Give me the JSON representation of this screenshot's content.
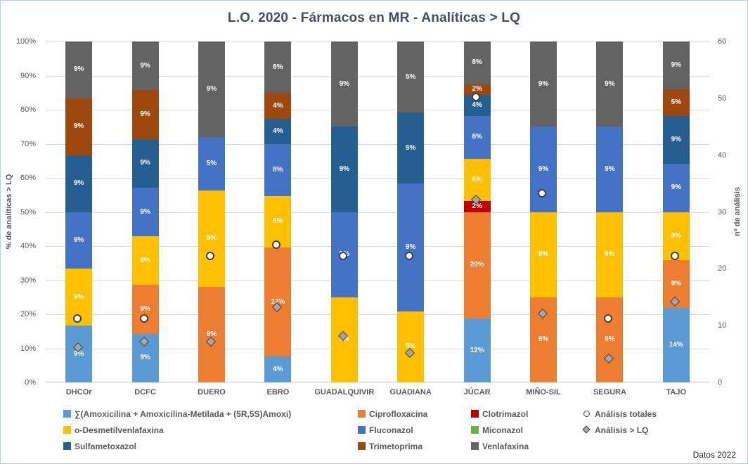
{
  "title": "L.O. 2020 - Fármacos en MR - Analíticas > LQ",
  "footer": "Datos 2022",
  "left_axis": {
    "title": "% de analíticas > LQ",
    "ticks": [
      "0%",
      "10%",
      "20%",
      "30%",
      "40%",
      "50%",
      "60%",
      "70%",
      "80%",
      "90%",
      "100%"
    ],
    "range": [
      0,
      100
    ]
  },
  "right_axis": {
    "title": "nº de análisis",
    "ticks": [
      0,
      10,
      20,
      30,
      40,
      50,
      60
    ],
    "range": [
      0,
      60
    ]
  },
  "chart_data": {
    "type": "bar",
    "subtype": "stacked-100-with-markers",
    "grid": true,
    "legend_position": "bottom",
    "label_unit": "%",
    "categories": [
      "DHCOr",
      "DCFC",
      "DUERO",
      "EBRO",
      "GUADALQUIVIR",
      "GUADIANA",
      "JÚCAR",
      "MIÑO-SIL",
      "SEGURA",
      "TAJO"
    ],
    "series": [
      {
        "name": "∑(Amoxicilina + Amoxicilina-Metilada + (5R,5S)Amoxi)",
        "color": "#5B9BD5",
        "values": [
          9,
          9,
          0,
          4,
          0,
          0,
          12,
          0,
          0,
          14
        ]
      },
      {
        "name": "Ciprofloxacina",
        "color": "#ED7D31",
        "values": [
          0,
          9,
          9,
          17,
          0,
          0,
          20,
          9,
          9,
          9
        ]
      },
      {
        "name": "Clotrimazol",
        "color": "#C00000",
        "values": [
          0,
          0,
          0,
          0,
          0,
          0,
          2,
          0,
          0,
          0
        ]
      },
      {
        "name": "o-Desmetilvenlafaxina",
        "color": "#FFC000",
        "values": [
          9,
          9,
          9,
          8,
          9,
          5,
          8,
          9,
          9,
          9
        ]
      },
      {
        "name": "Fluconazol",
        "color": "#4472C4",
        "values": [
          9,
          9,
          5,
          8,
          9,
          9,
          8,
          9,
          9,
          9
        ]
      },
      {
        "name": "Miconazol",
        "color": "#70AD47",
        "values": [
          0,
          0,
          0,
          0,
          0,
          0,
          0,
          0,
          0,
          0
        ]
      },
      {
        "name": "Sulfametoxazol",
        "color": "#255E91",
        "values": [
          9,
          9,
          0,
          4,
          9,
          5,
          4,
          0,
          0,
          9
        ]
      },
      {
        "name": "Trimetoprima",
        "color": "#9E480E",
        "values": [
          9,
          9,
          0,
          4,
          0,
          0,
          2,
          0,
          0,
          5
        ]
      },
      {
        "name": "Venlafaxina",
        "color": "#636363",
        "values": [
          9,
          9,
          9,
          8,
          9,
          5,
          8,
          9,
          9,
          9
        ]
      }
    ],
    "markers": [
      {
        "name": "Análisis totales",
        "shape": "circle",
        "axis": "right",
        "values": [
          11,
          11,
          22,
          24,
          22,
          22,
          50,
          33,
          11,
          22
        ]
      },
      {
        "name": "Análisis > LQ",
        "shape": "diamond",
        "axis": "right",
        "values": [
          6,
          7,
          7,
          13,
          8,
          5,
          32,
          12,
          4,
          14
        ]
      }
    ]
  },
  "legend": {
    "items": [
      {
        "label": "∑(Amoxicilina + Amoxicilina-Metilada + (5R,5S)Amoxi)",
        "swatch": "square",
        "color": "#5B9BD5",
        "row": 0,
        "col": 0
      },
      {
        "label": "Ciprofloxacina",
        "swatch": "square",
        "color": "#ED7D31",
        "row": 0,
        "col": 1
      },
      {
        "label": "Clotrimazol",
        "swatch": "square",
        "color": "#C00000",
        "row": 0,
        "col": 2
      },
      {
        "label": "Análisis totales",
        "swatch": "circle",
        "color": "#FFFFFF",
        "row": 0,
        "col": 3
      },
      {
        "label": "o-Desmetilvenlafaxina",
        "swatch": "square",
        "color": "#FFC000",
        "row": 1,
        "col": 0
      },
      {
        "label": "Fluconazol",
        "swatch": "square",
        "color": "#4472C4",
        "row": 1,
        "col": 1
      },
      {
        "label": "Miconazol",
        "swatch": "square",
        "color": "#70AD47",
        "row": 1,
        "col": 2
      },
      {
        "label": "Análisis > LQ",
        "swatch": "diamond",
        "color": "#A6A6A6",
        "row": 1,
        "col": 3
      },
      {
        "label": "Sulfametoxazol",
        "swatch": "square",
        "color": "#255E91",
        "row": 2,
        "col": 0
      },
      {
        "label": "Trimetoprima",
        "swatch": "square",
        "color": "#9E480E",
        "row": 2,
        "col": 1
      },
      {
        "label": "Venlafaxina",
        "swatch": "square",
        "color": "#636363",
        "row": 2,
        "col": 2
      }
    ]
  },
  "colors": {
    "grid": "#D9D9D9",
    "axis_text": "#595959",
    "title_text": "#464E5C",
    "marker_circle_fill": "#FFFFFF",
    "marker_diamond_fill": "#A6A6A6",
    "marker_border": "#404040"
  }
}
